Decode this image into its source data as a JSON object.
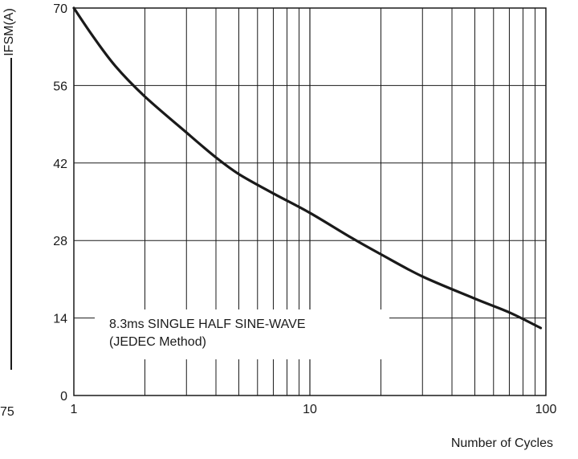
{
  "chart_data": {
    "type": "line",
    "ylabel": "IFSM(A)",
    "xlabel": "Number of Cycles",
    "x_scale": "log",
    "xlim": [
      1,
      100
    ],
    "ylim": [
      0,
      70
    ],
    "x_ticks": [
      "1",
      "10",
      "100"
    ],
    "y_ticks": [
      "0",
      "14",
      "28",
      "42",
      "56",
      "70"
    ],
    "grid": true,
    "annotation": [
      "8.3ms SINGLE HALF SINE-WAVE",
      "(JEDEC Method)"
    ],
    "series": [
      {
        "x": [
          1,
          1.2,
          1.5,
          2,
          3,
          4,
          5,
          7,
          10,
          15,
          20,
          30,
          50,
          70,
          95
        ],
        "values": [
          70,
          65,
          59.5,
          54,
          47.5,
          43,
          40,
          36.5,
          33,
          28.5,
          25.5,
          21.5,
          17.5,
          15,
          12.2
        ]
      }
    ]
  },
  "side_fragment": "75",
  "colors": {
    "ink": "#1a1a1a",
    "grid": "#1a1a1a",
    "background": "#ffffff"
  }
}
